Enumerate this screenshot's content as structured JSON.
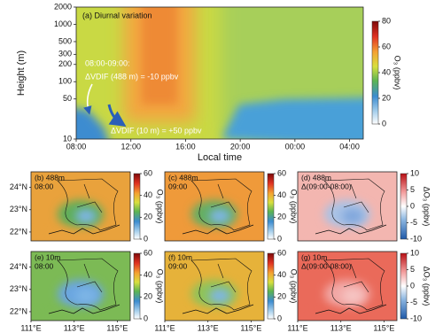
{
  "chart_data": [
    {
      "type": "contour",
      "title": "(a) Diurnal variation",
      "x_label": "Local time",
      "y_label": "Height (m)",
      "log_y": true,
      "xlim": [
        8,
        29
      ],
      "xticks": [
        {
          "value": 8,
          "label": "08:00"
        },
        {
          "value": 12,
          "label": "12:00"
        },
        {
          "value": 16,
          "label": "16:00"
        },
        {
          "value": 20,
          "label": "20:00"
        },
        {
          "value": 24,
          "label": "00:00"
        },
        {
          "value": 28,
          "label": "04:00"
        }
      ],
      "ylim": [
        10,
        2000
      ],
      "yticks": [
        10,
        50,
        100,
        200,
        300,
        500,
        1000,
        2000
      ],
      "annotations": [
        "08:00-09:00:",
        "ΔVDIF (488 m) = -10 ppbv",
        "ΔVDIF (10 m) = +50 ppbv"
      ],
      "colorbar": {
        "label": "O₃ (ppbv)",
        "lim": [
          0,
          80
        ],
        "ticks": [
          0,
          20,
          40,
          60,
          80
        ]
      }
    },
    {
      "type": "map",
      "title": [
        "(b) 488m",
        "08:00"
      ],
      "xlim": [
        111,
        115.6
      ],
      "ylim": [
        21.6,
        24.7
      ],
      "yticks": [
        {
          "value": 22,
          "label": "22°N"
        },
        {
          "value": 23,
          "label": "23°N"
        },
        {
          "value": 24,
          "label": "24°N"
        }
      ],
      "colorbar": {
        "label": "O₃ (ppbv)",
        "lim": [
          0,
          60
        ],
        "ticks": [
          0,
          20,
          40,
          60
        ]
      }
    },
    {
      "type": "map",
      "title": [
        "(c) 488m",
        "09:00"
      ],
      "xlim": [
        111,
        115.6
      ],
      "ylim": [
        21.6,
        24.7
      ],
      "colorbar": {
        "label": "O₃ (ppbv)",
        "lim": [
          0,
          60
        ],
        "ticks": [
          0,
          20,
          40,
          60
        ]
      }
    },
    {
      "type": "map",
      "title": [
        "(d) 488m",
        "Δ(09:00-08:00)"
      ],
      "xlim": [
        111,
        115.6
      ],
      "ylim": [
        21.6,
        24.7
      ],
      "colorbar": {
        "label": "ΔO₃ (ppbv)",
        "lim": [
          -10,
          10
        ],
        "ticks": [
          -10,
          -5,
          0,
          5,
          10
        ]
      }
    },
    {
      "type": "map",
      "title": [
        "(e) 10m",
        "08:00"
      ],
      "xlim": [
        111,
        115.6
      ],
      "ylim": [
        21.6,
        24.7
      ],
      "yticks": [
        {
          "value": 22,
          "label": "22°N"
        },
        {
          "value": 23,
          "label": "23°N"
        },
        {
          "value": 24,
          "label": "24°N"
        }
      ],
      "xticks": [
        {
          "value": 111,
          "label": "111°E"
        },
        {
          "value": 113,
          "label": "113°E"
        },
        {
          "value": 115,
          "label": "115°E"
        }
      ],
      "colorbar": {
        "label": "O₃ (ppbv)",
        "lim": [
          0,
          60
        ],
        "ticks": [
          0,
          20,
          40,
          60
        ]
      }
    },
    {
      "type": "map",
      "title": [
        "(f) 10m",
        "09:00"
      ],
      "xlim": [
        111,
        115.6
      ],
      "ylim": [
        21.6,
        24.7
      ],
      "xticks": [
        {
          "value": 111,
          "label": "111°E"
        },
        {
          "value": 113,
          "label": "113°E"
        },
        {
          "value": 115,
          "label": "115°E"
        }
      ],
      "colorbar": {
        "label": "O₃ (ppbv)",
        "lim": [
          0,
          60
        ],
        "ticks": [
          0,
          20,
          40,
          60
        ]
      }
    },
    {
      "type": "map",
      "title": [
        "(g) 10m",
        "Δ(09:00-08:00)"
      ],
      "xlim": [
        111,
        115.6
      ],
      "ylim": [
        21.6,
        24.7
      ],
      "xticks": [
        {
          "value": 111,
          "label": "111°E"
        },
        {
          "value": 113,
          "label": "113°E"
        },
        {
          "value": 115,
          "label": "115°E"
        }
      ],
      "colorbar": {
        "label": "ΔO₃ (ppbv)",
        "lim": [
          -10,
          10
        ],
        "ticks": [
          -10,
          -5,
          0,
          5,
          10
        ]
      }
    }
  ]
}
